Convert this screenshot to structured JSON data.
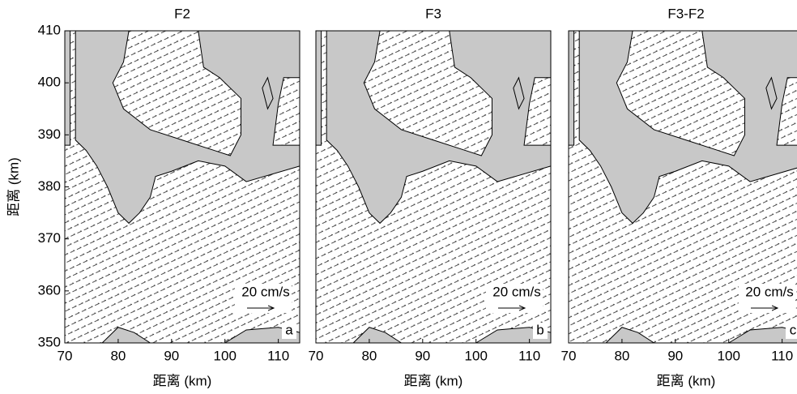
{
  "chart_data": [
    {
      "type": "vector-field",
      "title": "F2",
      "xlabel": "距离 (km)",
      "ylabel": "距离 (km)",
      "xlim": [
        70,
        114
      ],
      "ylim": [
        350,
        410
      ],
      "xticks": [
        70,
        80,
        90,
        100,
        110
      ],
      "yticks": [
        350,
        360,
        370,
        380,
        390,
        400,
        410
      ],
      "annotation": "20 cm/s",
      "panel_label": "a"
    },
    {
      "type": "vector-field",
      "title": "F3",
      "xlabel": "距离 (km)",
      "xlim": [
        70,
        114
      ],
      "ylim": [
        350,
        410
      ],
      "xticks": [
        70,
        80,
        90,
        100,
        110
      ],
      "annotation": "20 cm/s",
      "panel_label": "b"
    },
    {
      "type": "vector-field",
      "title": "F3-F2",
      "xlabel": "距离 (km)",
      "xlim": [
        70,
        114
      ],
      "ylim": [
        350,
        410
      ],
      "xticks": [
        70,
        80,
        90,
        100,
        110
      ],
      "annotation": "20 cm/s",
      "panel_label": "c"
    }
  ]
}
